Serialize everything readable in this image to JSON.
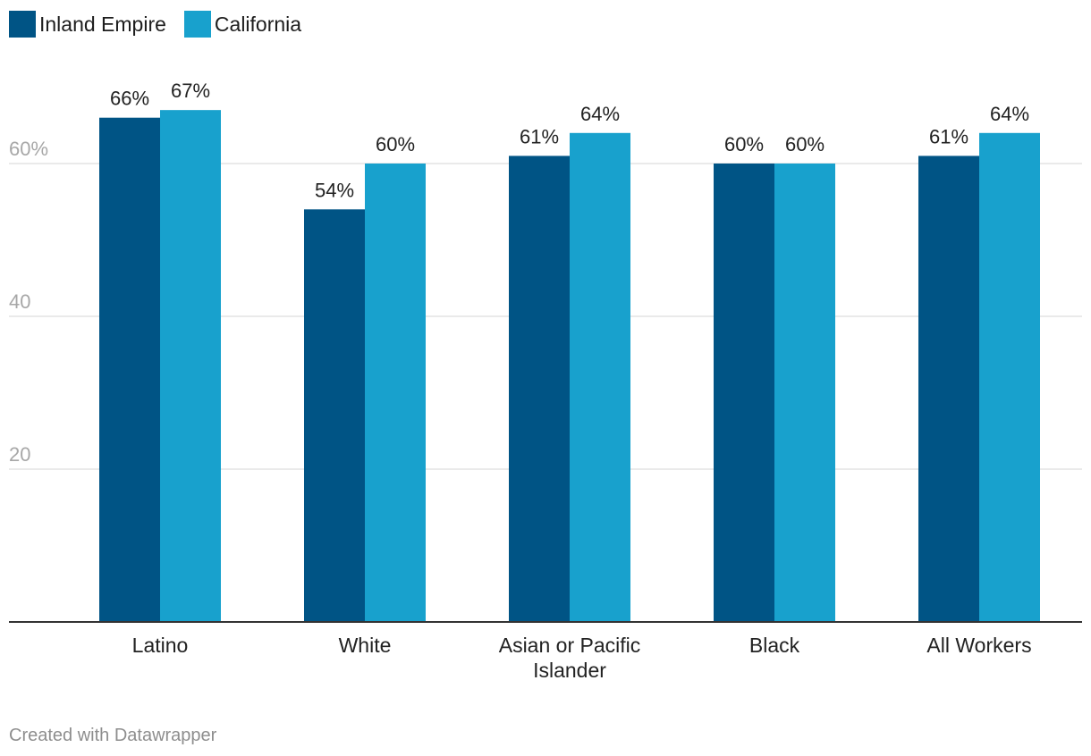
{
  "chart_data": {
    "type": "bar",
    "categories": [
      "Latino",
      "White",
      "Asian or Pacific Islander",
      "Black",
      "All Workers"
    ],
    "category_lines": [
      [
        "Latino"
      ],
      [
        "White"
      ],
      [
        "Asian or Pacific",
        "Islander"
      ],
      [
        "Black"
      ],
      [
        "All Workers"
      ]
    ],
    "series": [
      {
        "name": "Inland Empire",
        "color": "#005485",
        "values": [
          66,
          54,
          61,
          60,
          61
        ],
        "labels": [
          "66%",
          "54%",
          "61%",
          "60%",
          "61%"
        ]
      },
      {
        "name": "California",
        "color": "#18a1cd",
        "values": [
          67,
          60,
          64,
          60,
          64
        ],
        "labels": [
          "67%",
          "60%",
          "64%",
          "60%",
          "64%"
        ]
      }
    ],
    "y_ticks": [
      20,
      40,
      60
    ],
    "y_tick_labels": [
      "20",
      "40",
      "60%"
    ],
    "ylim": [
      0,
      73
    ],
    "grid": true,
    "legend_position": "top-left",
    "title": "",
    "xlabel": "",
    "ylabel": ""
  },
  "footer": {
    "credit": "Created with Datawrapper"
  },
  "colors": {
    "grid": "#e4e4e4",
    "baseline": "#333333"
  }
}
